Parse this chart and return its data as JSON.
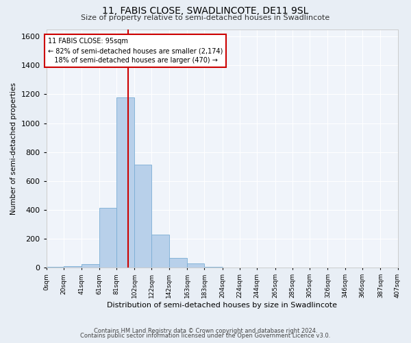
{
  "title": "11, FABIS CLOSE, SWADLINCOTE, DE11 9SL",
  "subtitle": "Size of property relative to semi-detached houses in Swadlincote",
  "xlabel": "Distribution of semi-detached houses by size in Swadlincote",
  "ylabel": "Number of semi-detached properties",
  "bin_edges": [
    0,
    20,
    41,
    61,
    81,
    102,
    122,
    142,
    163,
    183,
    204,
    224,
    244,
    265,
    285,
    305,
    326,
    346,
    366,
    387,
    407
  ],
  "bin_labels": [
    "0sqm",
    "20sqm",
    "41sqm",
    "61sqm",
    "81sqm",
    "102sqm",
    "122sqm",
    "142sqm",
    "163sqm",
    "183sqm",
    "204sqm",
    "224sqm",
    "244sqm",
    "265sqm",
    "285sqm",
    "305sqm",
    "326sqm",
    "346sqm",
    "366sqm",
    "387sqm",
    "407sqm"
  ],
  "bar_values": [
    5,
    10,
    25,
    415,
    1180,
    715,
    230,
    70,
    30,
    5,
    0,
    0,
    0,
    0,
    0,
    0,
    0,
    0,
    0,
    0
  ],
  "bar_color": "#b8d0ea",
  "bar_edge_color": "#7aadd4",
  "property_sqm": 95,
  "marker_label": "11 FABIS CLOSE: 95sqm",
  "smaller_pct": "82%",
  "smaller_n": "2,174",
  "larger_pct": "18%",
  "larger_n": "470",
  "ylim": [
    0,
    1650
  ],
  "yticks": [
    0,
    200,
    400,
    600,
    800,
    1000,
    1200,
    1400,
    1600
  ],
  "bg_color": "#e8eef5",
  "plot_bg_color": "#f0f4fa",
  "footnote1": "Contains HM Land Registry data © Crown copyright and database right 2024.",
  "footnote2": "Contains public sector information licensed under the Open Government Licence v3.0.",
  "red_line_color": "#cc0000",
  "annotation_box_color": "#cc0000"
}
